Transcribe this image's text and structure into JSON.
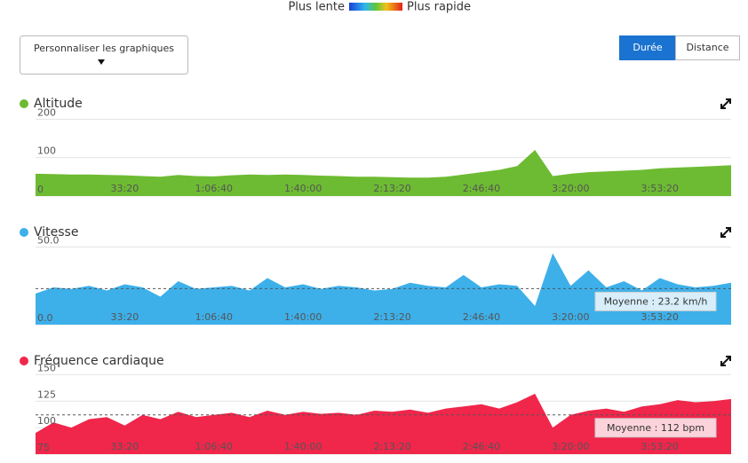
{
  "legend_scale": {
    "slow": "Plus lente",
    "fast": "Plus rapide"
  },
  "customize_button": "Personnaliser les graphiques",
  "toggle": {
    "options": [
      "Durée",
      "Distance"
    ],
    "active": 0
  },
  "chart_data": [
    {
      "type": "area",
      "title": "Altitude",
      "color": "#6dbb32",
      "x": [
        0,
        400,
        800,
        1200,
        1600,
        2000,
        2400,
        2800,
        3200,
        3600,
        4000,
        4400,
        4800,
        5200,
        5600,
        6000,
        6400,
        6800,
        7200,
        7600,
        8000,
        8400,
        8800,
        9200,
        9600,
        10000,
        10400,
        10800,
        11200,
        11600,
        12000,
        12400,
        12800,
        13200,
        13600,
        14000,
        14400,
        14800,
        15200,
        15600
      ],
      "values": [
        58,
        57,
        56,
        56,
        55,
        54,
        52,
        50,
        55,
        52,
        51,
        54,
        56,
        55,
        56,
        55,
        53,
        52,
        50,
        50,
        49,
        48,
        48,
        50,
        56,
        62,
        68,
        78,
        120,
        52,
        58,
        62,
        64,
        66,
        68,
        72,
        74,
        76,
        78,
        80
      ],
      "xlim": [
        0,
        15600
      ],
      "ylim": [
        0,
        210
      ],
      "xticks": [
        {
          "value": 2000,
          "label": "33:20"
        },
        {
          "value": 4000,
          "label": "1:06:40"
        },
        {
          "value": 6000,
          "label": "1:40:00"
        },
        {
          "value": 8000,
          "label": "2:13:20"
        },
        {
          "value": 10000,
          "label": "2:46:40"
        },
        {
          "value": 12000,
          "label": "3:20:00"
        },
        {
          "value": 14000,
          "label": "3:53:20"
        }
      ],
      "yticks": [
        0,
        100,
        200
      ],
      "grid": true
    },
    {
      "type": "area",
      "title": "Vitesse",
      "color": "#3db0ea",
      "x": [
        0,
        400,
        800,
        1200,
        1600,
        2000,
        2400,
        2800,
        3200,
        3600,
        4000,
        4400,
        4800,
        5200,
        5600,
        6000,
        6400,
        6800,
        7200,
        7600,
        8000,
        8400,
        8800,
        9200,
        9600,
        10000,
        10400,
        10800,
        11200,
        11600,
        12000,
        12400,
        12800,
        13200,
        13600,
        14000,
        14400,
        14800,
        15200,
        15600
      ],
      "values": [
        20,
        24,
        23,
        25,
        22,
        26,
        24,
        18,
        28,
        23,
        24,
        25,
        22,
        30,
        24,
        26,
        23,
        25,
        24,
        22,
        23,
        27,
        25,
        24,
        32,
        24,
        26,
        25,
        12,
        46,
        25,
        35,
        24,
        28,
        22,
        30,
        26,
        24,
        25,
        27
      ],
      "xlim": [
        0,
        15600
      ],
      "ylim": [
        0,
        52
      ],
      "xticks": [
        {
          "value": 2000,
          "label": "33:20"
        },
        {
          "value": 4000,
          "label": "1:06:40"
        },
        {
          "value": 6000,
          "label": "1:40:00"
        },
        {
          "value": 8000,
          "label": "2:13:20"
        },
        {
          "value": 10000,
          "label": "2:46:40"
        },
        {
          "value": 12000,
          "label": "3:20:00"
        },
        {
          "value": 14000,
          "label": "3:53:20"
        }
      ],
      "yticks": [
        {
          "value": 0,
          "label": "0.0"
        },
        {
          "value": 50,
          "label": "50.0"
        }
      ],
      "grid": true,
      "average": 23.2,
      "average_label": "Moyenne : 23.2 km/h"
    },
    {
      "type": "area",
      "title": "Fréquence cardiaque",
      "color": "#f0264b",
      "x": [
        0,
        400,
        800,
        1200,
        1600,
        2000,
        2400,
        2800,
        3200,
        3600,
        4000,
        4400,
        4800,
        5200,
        5600,
        6000,
        6400,
        6800,
        7200,
        7600,
        8000,
        8400,
        8800,
        9200,
        9600,
        10000,
        10400,
        10800,
        11200,
        11600,
        12000,
        12400,
        12800,
        13200,
        13600,
        14000,
        14400,
        14800,
        15200,
        15600
      ],
      "values": [
        95,
        105,
        100,
        108,
        110,
        102,
        112,
        108,
        115,
        110,
        112,
        114,
        110,
        116,
        112,
        115,
        113,
        114,
        112,
        116,
        115,
        117,
        114,
        118,
        120,
        122,
        118,
        124,
        132,
        100,
        112,
        116,
        118,
        115,
        120,
        122,
        126,
        124,
        125,
        127
      ],
      "xlim": [
        0,
        15600
      ],
      "ylim": [
        75,
        152
      ],
      "xticks": [
        {
          "value": 2000,
          "label": "33:20"
        },
        {
          "value": 4000,
          "label": "1:06:40"
        },
        {
          "value": 6000,
          "label": "1:40:00"
        },
        {
          "value": 8000,
          "label": "2:13:20"
        },
        {
          "value": 10000,
          "label": "2:46:40"
        },
        {
          "value": 12000,
          "label": "3:20:00"
        },
        {
          "value": 14000,
          "label": "3:53:20"
        }
      ],
      "yticks": [
        75,
        100,
        125,
        150
      ],
      "grid": true,
      "average": 112,
      "average_label": "Moyenne : 112 bpm"
    }
  ]
}
